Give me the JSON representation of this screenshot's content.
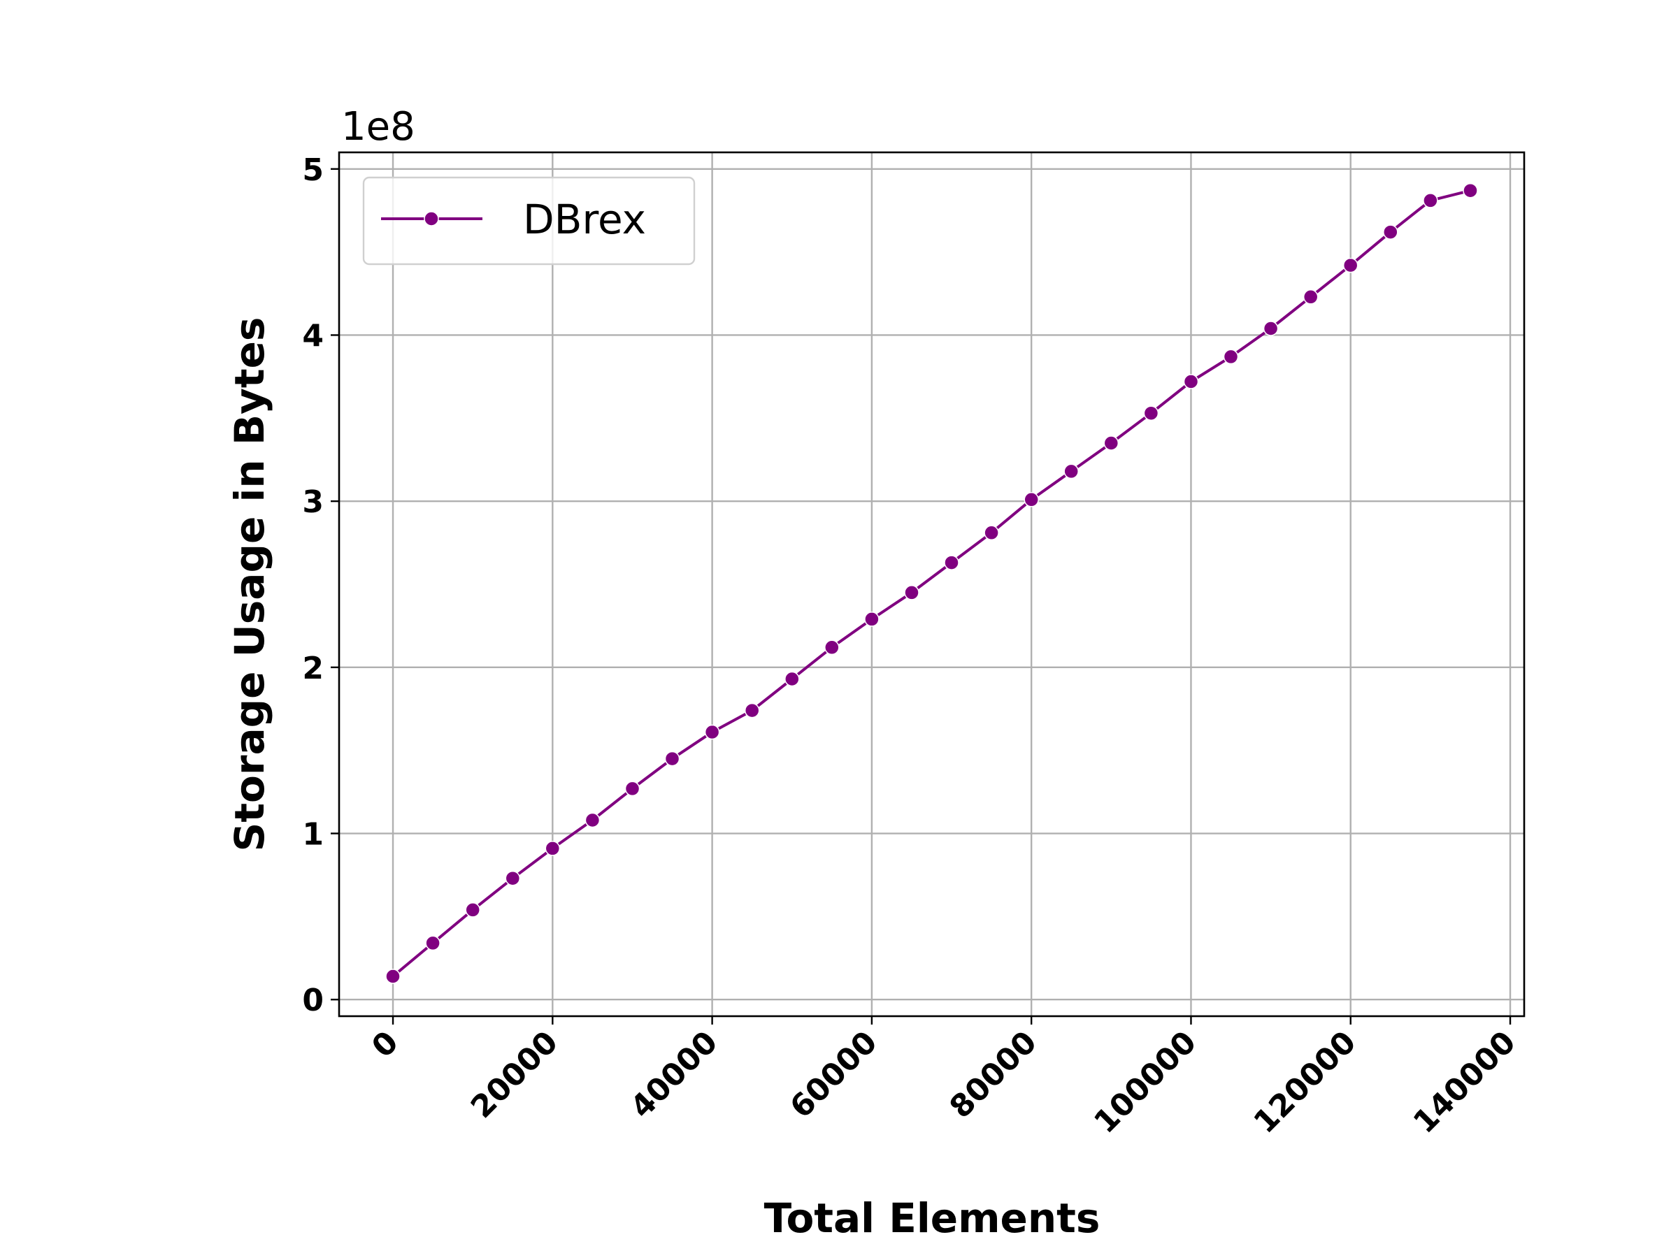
{
  "chart_data": {
    "type": "line",
    "xlabel": "Total Elements",
    "ylabel": "Storage Usage in Bytes",
    "y_offset_label": "1e8",
    "y_scale": 100000000,
    "xlim": [
      -6750,
      141750
    ],
    "ylim": [
      -0.1,
      5.1
    ],
    "x_ticks": [
      0,
      20000,
      40000,
      60000,
      80000,
      100000,
      120000,
      140000
    ],
    "x_tick_labels": [
      "0",
      "20000",
      "40000",
      "60000",
      "80000",
      "100000",
      "120000",
      "140000"
    ],
    "y_ticks": [
      0,
      1,
      2,
      3,
      4,
      5
    ],
    "y_tick_labels": [
      "0",
      "1",
      "2",
      "3",
      "4",
      "5"
    ],
    "grid": true,
    "legend": {
      "placement": "top-left",
      "entries": [
        "DBrex"
      ]
    },
    "series": [
      {
        "name": "DBrex",
        "color": "#800080",
        "marker": "circle",
        "x": [
          0,
          5000,
          10000,
          15000,
          20000,
          25000,
          30000,
          35000,
          40000,
          45000,
          50000,
          55000,
          60000,
          65000,
          70000,
          75000,
          80000,
          85000,
          90000,
          95000,
          100000,
          105000,
          110000,
          115000,
          120000,
          125000,
          130000,
          135000
        ],
        "values": [
          0.14,
          0.34,
          0.54,
          0.73,
          0.91,
          1.08,
          1.27,
          1.45,
          1.61,
          1.74,
          1.93,
          2.12,
          2.29,
          2.45,
          2.63,
          2.81,
          3.01,
          3.18,
          3.35,
          3.53,
          3.72,
          3.87,
          4.04,
          4.23,
          4.42,
          4.62,
          4.81,
          4.87
        ]
      }
    ]
  }
}
